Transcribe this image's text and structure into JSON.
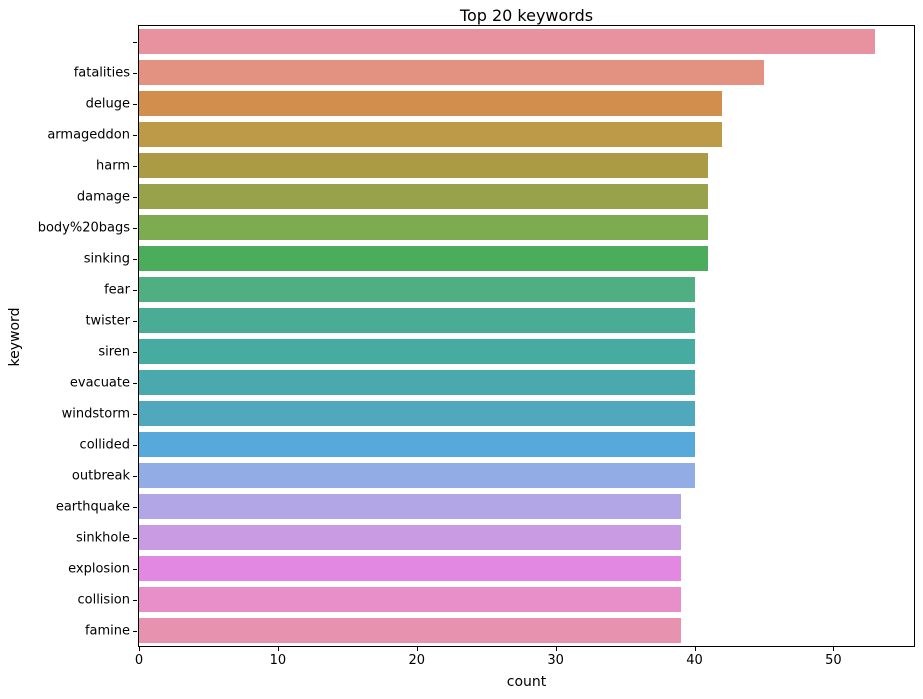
{
  "chart_data": {
    "type": "bar",
    "orientation": "horizontal",
    "title": "Top 20 keywords",
    "xlabel": "count",
    "ylabel": "keyword",
    "categories": [
      "",
      "fatalities",
      "deluge",
      "armageddon",
      "harm",
      "damage",
      "body%20bags",
      "sinking",
      "fear",
      "twister",
      "siren",
      "evacuate",
      "windstorm",
      "collided",
      "outbreak",
      "earthquake",
      "sinkhole",
      "explosion",
      "collision",
      "famine"
    ],
    "values": [
      53,
      45,
      42,
      42,
      41,
      41,
      41,
      41,
      40,
      40,
      40,
      40,
      40,
      40,
      40,
      39,
      39,
      39,
      39,
      39
    ],
    "bar_colors": [
      "#e8929f",
      "#e39181",
      "#d28e4c",
      "#bd9a47",
      "#ab9b44",
      "#97a24a",
      "#7cab50",
      "#4bad5c",
      "#4fae82",
      "#4bac96",
      "#46aba0",
      "#49a9ac",
      "#4fa8bb",
      "#57a9dc",
      "#92ace5",
      "#b3a6e6",
      "#c89be2",
      "#e287e2",
      "#e88ec8",
      "#e793af"
    ],
    "xlim": [
      0,
      55.8
    ],
    "x_ticks": [
      0,
      10,
      20,
      30,
      40,
      50
    ],
    "grid": false,
    "legend": "none",
    "spine_color": "#000000",
    "background": "#ffffff"
  }
}
